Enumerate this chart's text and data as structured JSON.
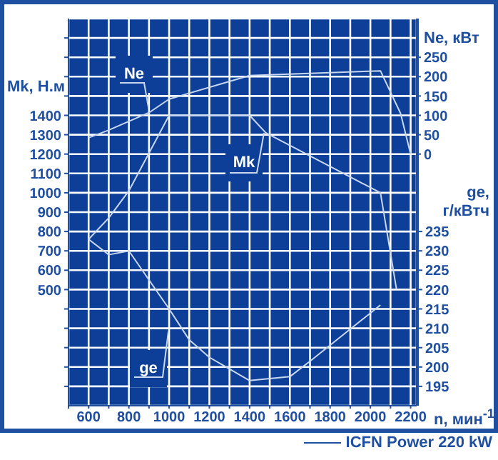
{
  "chart_data": {
    "type": "line",
    "xlabel": "n, мин$^{-1}$",
    "ylabel": "Mk, Н.м",
    "y2label": "Ne, кВт",
    "y3label": "ge, г/кВтч",
    "xlim": [
      500,
      2230
    ],
    "xticks": [
      {
        "value": 500,
        "label": null
      },
      600,
      {
        "value": 700,
        "label": null
      },
      800,
      {
        "value": 900,
        "label": null
      },
      1000,
      {
        "value": 1100,
        "label": null
      },
      1200,
      {
        "value": 1300,
        "label": null
      },
      1400,
      {
        "value": 1500,
        "label": null
      },
      1600,
      {
        "value": 1700,
        "label": null
      },
      1800,
      {
        "value": 1900,
        "label": null
      },
      2000,
      {
        "value": 2100,
        "label": null
      },
      2200
    ],
    "ylim": [
      -100,
      1900
    ],
    "yticks": [
      {
        "value": 0,
        "label": null
      },
      {
        "value": 100,
        "label": null
      },
      {
        "value": 200,
        "label": null
      },
      {
        "value": 300,
        "label": null
      },
      {
        "value": 400,
        "label": null
      },
      500,
      600,
      700,
      800,
      900,
      1000,
      1100,
      1200,
      1300,
      1400,
      {
        "value": 1500,
        "label": null
      },
      {
        "value": 1600,
        "label": null
      },
      {
        "value": 1700,
        "label": null
      },
      {
        "value": 1800,
        "label": null
      }
    ],
    "y2lim": [
      -650,
      350
    ],
    "y2ticks": [
      0,
      50,
      100,
      150,
      200,
      250
    ],
    "y3lim": [
      190,
      290
    ],
    "y3ticks": [
      195,
      200,
      205,
      210,
      215,
      220,
      225,
      230,
      235
    ],
    "grid": true,
    "series": [
      {
        "name": "Mk",
        "color": "#c8d8f0",
        "axis": "y",
        "x": [
          600,
          700,
          800,
          1000,
          1400,
          1480,
          2050,
          2130
        ],
        "values": [
          760,
          870,
          1010,
          1400,
          1400,
          1310,
          1000,
          500
        ]
      },
      {
        "name": "Ne",
        "color": "#c8d8f0",
        "axis": "y2",
        "x": [
          600,
          700,
          900,
          1000,
          1400,
          2050,
          2150,
          2200
        ],
        "values": [
          42,
          62,
          107,
          142,
          203,
          215,
          105,
          0
        ]
      },
      {
        "name": "ge",
        "color": "#c8d8f0",
        "axis": "y3",
        "x": [
          600,
          700,
          800,
          1000,
          1100,
          1200,
          1400,
          1600,
          1700,
          2050
        ],
        "values": [
          233,
          229,
          230,
          215,
          207,
          202.5,
          196.5,
          197.5,
          201.5,
          216
        ]
      }
    ],
    "annotations": [
      "ICFN Power 220 kW"
    ]
  }
}
